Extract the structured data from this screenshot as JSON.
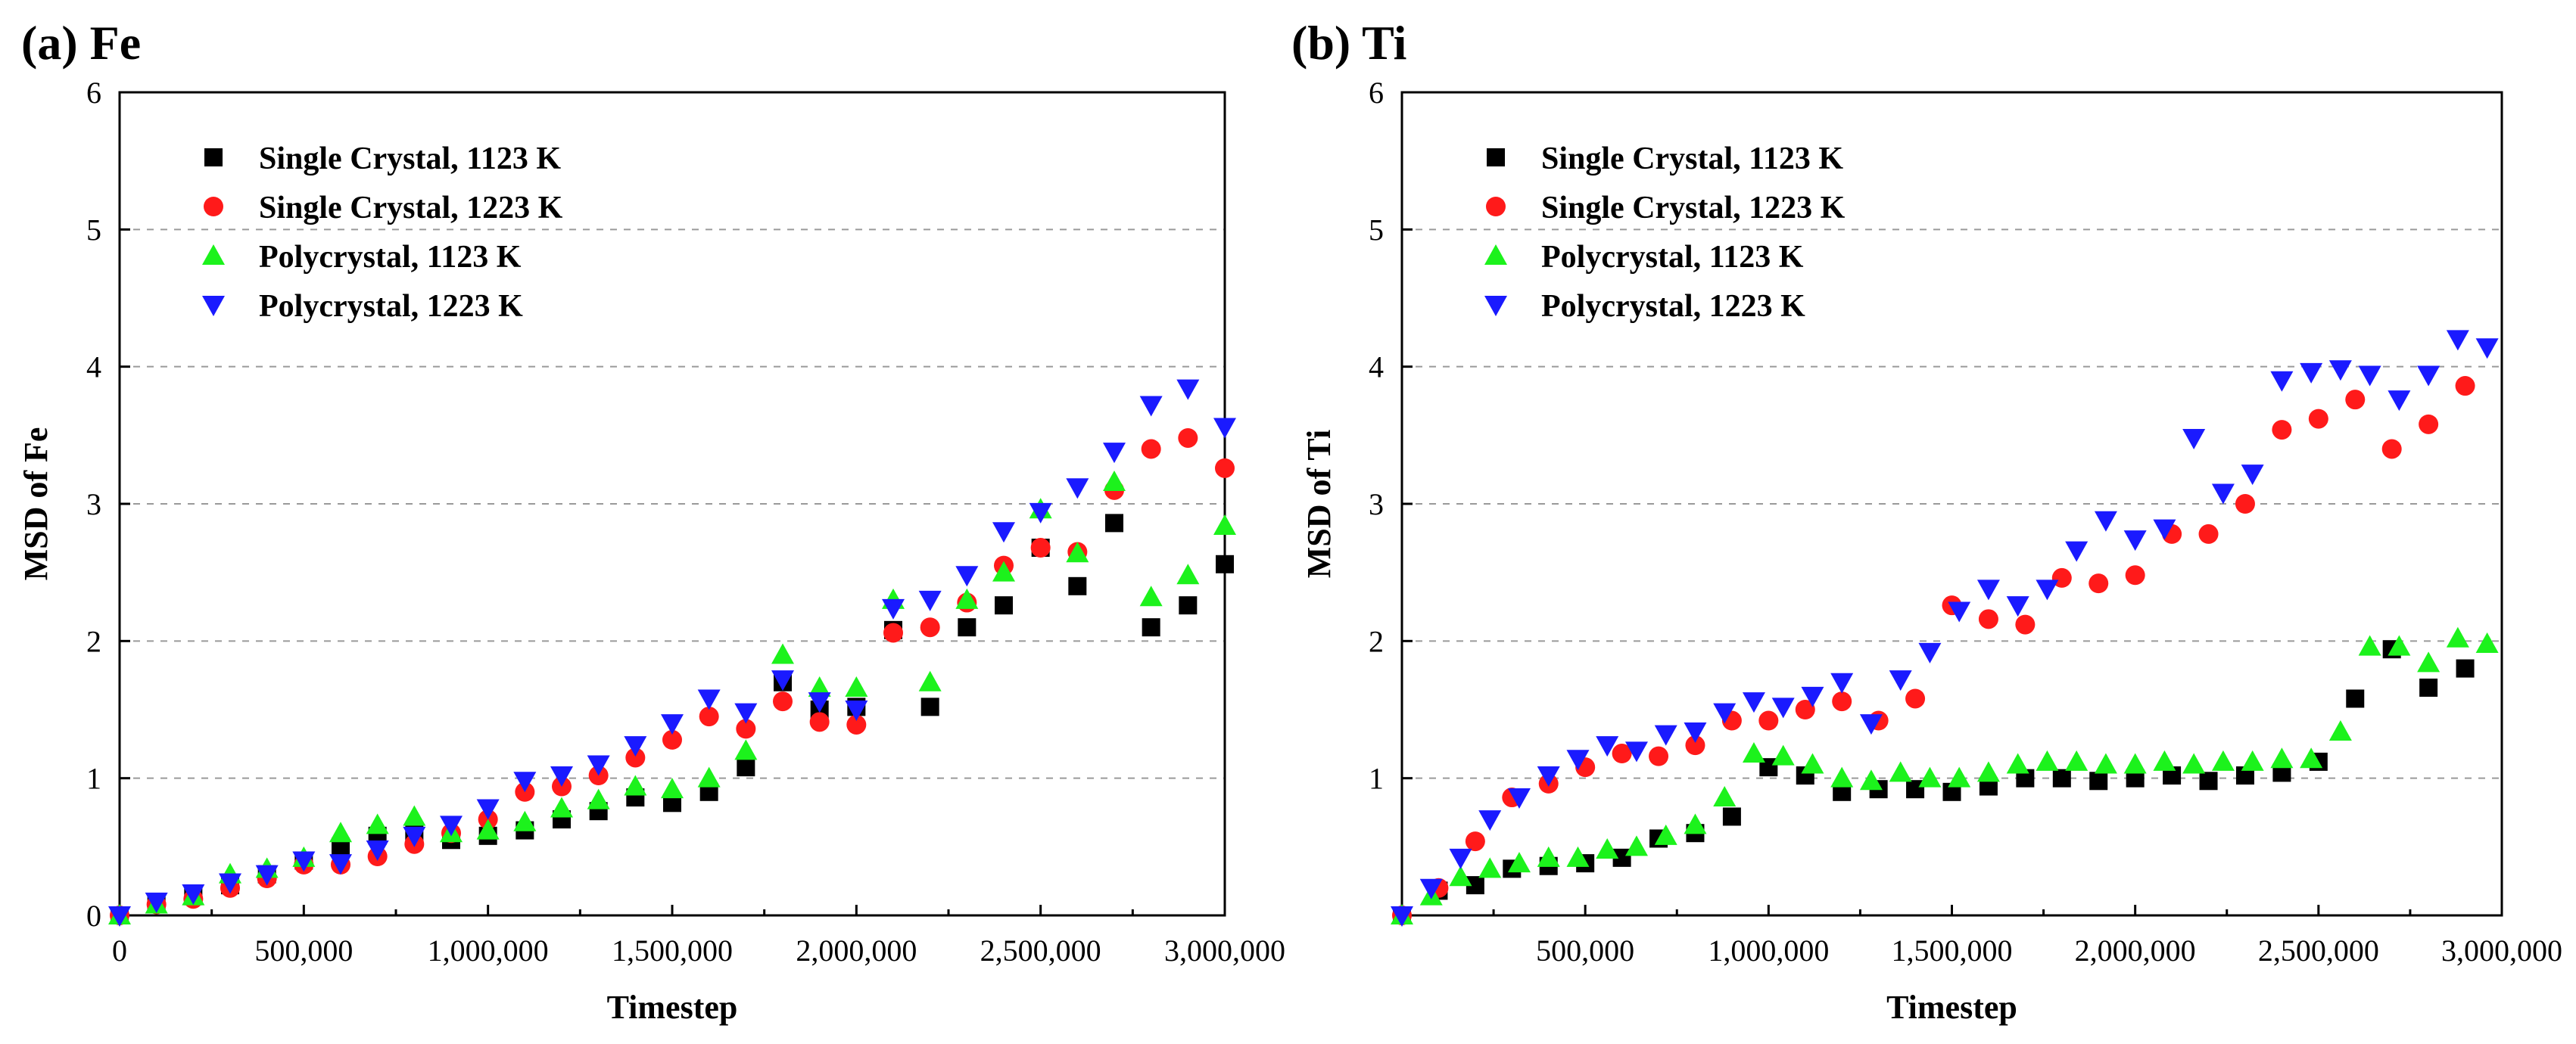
{
  "chart_data": [
    {
      "type": "scatter",
      "title": "(a) Fe",
      "xlabel": "Timestep",
      "ylabel": "MSD of Fe",
      "xlim": [
        0,
        3000000
      ],
      "ylim": [
        0,
        6
      ],
      "xticks": [
        0,
        500000,
        1000000,
        1500000,
        2000000,
        2500000,
        3000000
      ],
      "xtick_labels": [
        "0",
        "500,000",
        "1,000,000",
        "1,500,000",
        "2,000,000",
        "2,500,000",
        "3,000,000"
      ],
      "yticks": [
        0,
        1,
        2,
        3,
        4,
        5,
        6
      ],
      "ytick_labels": [
        "0",
        "1",
        "2",
        "3",
        "4",
        "5",
        "6"
      ],
      "grid": "horizontal dashed",
      "legend_position": "top-left",
      "series": [
        {
          "name": "Single Crystal, 1123 K",
          "marker": "square",
          "color": "#000000",
          "x": [
            0,
            100000,
            200000,
            300000,
            400000,
            500000,
            600000,
            700000,
            800000,
            900000,
            1000000,
            1100000,
            1200000,
            1300000,
            1400000,
            1500000,
            1600000,
            1700000,
            1800000,
            1900000,
            2000000,
            2100000,
            2200000,
            2300000,
            2400000,
            2500000,
            2600000,
            2700000,
            2800000,
            2900000,
            3000000
          ],
          "y": [
            0,
            0.08,
            0.14,
            0.22,
            0.3,
            0.4,
            0.5,
            0.58,
            0.6,
            0.55,
            0.58,
            0.62,
            0.7,
            0.76,
            0.86,
            0.82,
            0.9,
            1.08,
            1.7,
            1.5,
            1.52,
            2.08,
            1.52,
            2.1,
            2.26,
            2.68,
            2.4,
            2.86,
            2.1,
            2.26,
            2.56
          ]
        },
        {
          "name": "Single Crystal, 1223 K",
          "marker": "circle",
          "color": "#ff1a1a",
          "x": [
            0,
            100000,
            200000,
            300000,
            400000,
            500000,
            600000,
            700000,
            800000,
            900000,
            1000000,
            1100000,
            1200000,
            1300000,
            1400000,
            1500000,
            1600000,
            1700000,
            1800000,
            1900000,
            2000000,
            2100000,
            2200000,
            2300000,
            2400000,
            2500000,
            2600000,
            2700000,
            2800000,
            2900000,
            3000000
          ],
          "y": [
            0,
            0.08,
            0.12,
            0.2,
            0.27,
            0.37,
            0.37,
            0.43,
            0.52,
            0.6,
            0.7,
            0.9,
            0.94,
            1.02,
            1.15,
            1.28,
            1.45,
            1.36,
            1.56,
            1.41,
            1.39,
            2.06,
            2.1,
            2.28,
            2.55,
            2.68,
            2.65,
            3.1,
            3.4,
            3.48,
            3.26
          ]
        },
        {
          "name": "Polycrystal, 1123 K",
          "marker": "triangle-up",
          "color": "#1cf21c",
          "x": [
            0,
            100000,
            200000,
            300000,
            400000,
            500000,
            600000,
            700000,
            800000,
            900000,
            1000000,
            1100000,
            1200000,
            1300000,
            1400000,
            1500000,
            1600000,
            1700000,
            1800000,
            1900000,
            2000000,
            2100000,
            2200000,
            2300000,
            2400000,
            2500000,
            2600000,
            2700000,
            2800000,
            2900000,
            3000000
          ],
          "y": [
            0,
            0.08,
            0.14,
            0.3,
            0.34,
            0.42,
            0.6,
            0.66,
            0.72,
            0.6,
            0.62,
            0.68,
            0.78,
            0.84,
            0.94,
            0.92,
            1.0,
            1.2,
            1.9,
            1.66,
            1.66,
            2.3,
            1.7,
            2.3,
            2.5,
            2.96,
            2.64,
            3.16,
            2.32,
            2.48,
            2.84
          ]
        },
        {
          "name": "Polycrystal, 1223 K",
          "marker": "triangle-down",
          "color": "#1a1aff",
          "x": [
            0,
            100000,
            200000,
            300000,
            400000,
            500000,
            600000,
            700000,
            800000,
            900000,
            1000000,
            1100000,
            1200000,
            1300000,
            1400000,
            1500000,
            1600000,
            1700000,
            1800000,
            1900000,
            2000000,
            2100000,
            2200000,
            2300000,
            2400000,
            2500000,
            2600000,
            2700000,
            2800000,
            2900000,
            3000000
          ],
          "y": [
            0,
            0.1,
            0.16,
            0.24,
            0.3,
            0.4,
            0.38,
            0.48,
            0.58,
            0.66,
            0.78,
            0.98,
            1.02,
            1.1,
            1.24,
            1.4,
            1.58,
            1.48,
            1.72,
            1.56,
            1.5,
            2.24,
            2.3,
            2.48,
            2.8,
            2.94,
            3.12,
            3.38,
            3.72,
            3.84,
            3.56
          ]
        }
      ]
    },
    {
      "type": "scatter",
      "title": "(b) Ti",
      "xlabel": "Timestep",
      "ylabel": "MSD of Ti",
      "xlim": [
        0,
        3000000
      ],
      "ylim": [
        0,
        6
      ],
      "xticks": [
        500000,
        1000000,
        1500000,
        2000000,
        2500000,
        3000000
      ],
      "xtick_labels": [
        "500,000",
        "1,000,000",
        "1,500,000",
        "2,000,000",
        "2,500,000",
        "3,000,000"
      ],
      "yticks": [
        1,
        2,
        3,
        4,
        5,
        6
      ],
      "ytick_labels": [
        "1",
        "2",
        "3",
        "4",
        "5",
        "6"
      ],
      "grid": "horizontal dashed",
      "legend_position": "top-left",
      "series": [
        {
          "name": "Single Crystal, 1123 K",
          "marker": "square",
          "color": "#000000",
          "x": [
            0,
            100000,
            200000,
            300000,
            400000,
            500000,
            600000,
            700000,
            800000,
            900000,
            1000000,
            1100000,
            1200000,
            1300000,
            1400000,
            1500000,
            1600000,
            1700000,
            1800000,
            1900000,
            2000000,
            2100000,
            2200000,
            2300000,
            2400000,
            2500000,
            2600000,
            2700000,
            2800000,
            2900000
          ],
          "y": [
            0,
            0.18,
            0.22,
            0.34,
            0.36,
            0.38,
            0.42,
            0.56,
            0.6,
            0.72,
            1.08,
            1.02,
            0.9,
            0.92,
            0.92,
            0.9,
            0.94,
            1.0,
            1.0,
            0.98,
            1.0,
            1.02,
            0.98,
            1.02,
            1.04,
            1.12,
            1.58,
            1.94,
            1.66,
            1.8
          ]
        },
        {
          "name": "Single Crystal, 1223 K",
          "marker": "circle",
          "color": "#ff1a1a",
          "x": [
            0,
            100000,
            200000,
            300000,
            400000,
            500000,
            600000,
            700000,
            800000,
            900000,
            1000000,
            1100000,
            1200000,
            1300000,
            1400000,
            1500000,
            1600000,
            1700000,
            1800000,
            1900000,
            2000000,
            2100000,
            2200000,
            2300000,
            2400000,
            2500000,
            2600000,
            2700000,
            2800000,
            2900000
          ],
          "y": [
            0,
            0.2,
            0.54,
            0.86,
            0.96,
            1.08,
            1.18,
            1.16,
            1.24,
            1.42,
            1.42,
            1.5,
            1.56,
            1.42,
            1.58,
            2.26,
            2.16,
            2.12,
            2.46,
            2.42,
            2.48,
            2.78,
            2.78,
            3.0,
            3.54,
            3.62,
            3.76,
            3.4,
            3.58,
            3.86
          ]
        },
        {
          "name": "Polycrystal, 1123 K",
          "marker": "triangle-up",
          "color": "#1cf21c",
          "x": [
            0,
            80000,
            160000,
            240000,
            320000,
            400000,
            480000,
            560000,
            640000,
            720000,
            800000,
            880000,
            960000,
            1040000,
            1120000,
            1200000,
            1280000,
            1360000,
            1440000,
            1520000,
            1600000,
            1680000,
            1760000,
            1840000,
            1920000,
            2000000,
            2080000,
            2160000,
            2240000,
            2320000,
            2400000,
            2480000,
            2560000,
            2640000,
            2720000,
            2800000,
            2880000,
            2960000
          ],
          "y": [
            0,
            0.14,
            0.28,
            0.34,
            0.38,
            0.42,
            0.42,
            0.48,
            0.5,
            0.58,
            0.66,
            0.86,
            1.18,
            1.16,
            1.1,
            1.0,
            0.98,
            1.04,
            1.0,
            1.0,
            1.04,
            1.1,
            1.12,
            1.12,
            1.1,
            1.1,
            1.12,
            1.1,
            1.12,
            1.12,
            1.14,
            1.14,
            1.34,
            1.96,
            1.96,
            1.84,
            2.02,
            1.98
          ]
        },
        {
          "name": "Polycrystal, 1223 K",
          "marker": "triangle-down",
          "color": "#1a1aff",
          "x": [
            0,
            80000,
            160000,
            240000,
            320000,
            400000,
            480000,
            560000,
            640000,
            720000,
            800000,
            880000,
            960000,
            1040000,
            1120000,
            1200000,
            1280000,
            1360000,
            1440000,
            1520000,
            1600000,
            1680000,
            1760000,
            1840000,
            1920000,
            2000000,
            2080000,
            2160000,
            2240000,
            2320000,
            2400000,
            2480000,
            2560000,
            2640000,
            2720000,
            2800000,
            2880000,
            2960000
          ],
          "y": [
            0,
            0.2,
            0.42,
            0.7,
            0.86,
            1.02,
            1.14,
            1.24,
            1.2,
            1.32,
            1.34,
            1.48,
            1.56,
            1.52,
            1.6,
            1.7,
            1.4,
            1.72,
            1.92,
            2.22,
            2.38,
            2.26,
            2.38,
            2.66,
            2.88,
            2.74,
            2.82,
            3.48,
            3.08,
            3.22,
            3.9,
            3.96,
            3.98,
            3.94,
            3.76,
            3.94,
            4.2,
            4.14
          ]
        }
      ]
    }
  ]
}
